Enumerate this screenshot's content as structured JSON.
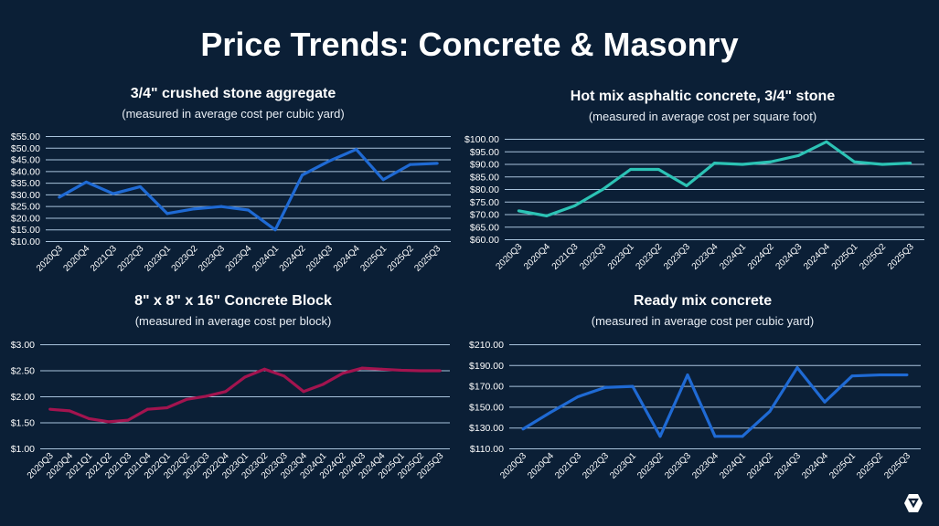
{
  "title": "Price Trends: Concrete & Masonry",
  "logo": {
    "icon": "brand-logo-icon"
  },
  "chart_data": [
    {
      "type": "line",
      "title": "3/4\" crushed stone aggregate",
      "subtitle": "(measured in average cost per cubic yard)",
      "categories": [
        "2020Q3",
        "2020Q4",
        "2021Q3",
        "2022Q3",
        "2023Q1",
        "2023Q2",
        "2023Q3",
        "2023Q4",
        "2024Q1",
        "2024Q2",
        "2024Q3",
        "2024Q4",
        "2025Q1",
        "2025Q2",
        "2025Q3"
      ],
      "values": [
        29.0,
        35.5,
        30.5,
        33.5,
        22.0,
        24.0,
        25.0,
        23.5,
        15.0,
        38.5,
        44.5,
        49.5,
        36.5,
        43.0,
        43.5
      ],
      "ylim": [
        10,
        55
      ],
      "ystep": 5,
      "yformat": "$0.00",
      "yticks": [
        "$10.00",
        "$15.00",
        "$20.00",
        "$25.00",
        "$30.00",
        "$35.00",
        "$40.00",
        "$45.00",
        "$50.00",
        "$55.00"
      ],
      "color": "#1f6ad4",
      "grid": true
    },
    {
      "type": "line",
      "title": "Hot mix asphaltic concrete, 3/4\" stone",
      "subtitle": "(measured in average cost per square foot)",
      "categories": [
        "2020Q3",
        "2020Q4",
        "2021Q3",
        "2022Q3",
        "2023Q1",
        "2023Q2",
        "2023Q3",
        "2023Q4",
        "2024Q1",
        "2024Q2",
        "2024Q3",
        "2024Q4",
        "2025Q1",
        "2025Q2",
        "2025Q3"
      ],
      "values": [
        71.5,
        69.5,
        73.5,
        80.0,
        88.0,
        88.0,
        81.5,
        90.5,
        90.0,
        91.0,
        93.5,
        99.0,
        91.0,
        90.0,
        90.5
      ],
      "ylim": [
        60,
        100
      ],
      "ystep": 5,
      "yticks": [
        "$60.00",
        "$65.00",
        "$70.00",
        "$75.00",
        "$80.00",
        "$85.00",
        "$90.00",
        "$95.00",
        "$100.00"
      ],
      "color": "#2cc3b5",
      "grid": true
    },
    {
      "type": "line",
      "title": "8\" x 8\" x 16\" Concrete Block",
      "subtitle": "(measured in average cost per block)",
      "categories": [
        "2020Q3",
        "2020Q4",
        "2021Q1",
        "2021Q2",
        "2021Q3",
        "2021Q4",
        "2022Q1",
        "2022Q2",
        "2022Q3",
        "2022Q4",
        "2023Q1",
        "2023Q2",
        "2023Q3",
        "2023Q4",
        "2024Q1",
        "2024Q2",
        "2024Q3",
        "2024Q4",
        "2025Q1",
        "2025Q2",
        "2025Q3"
      ],
      "values": [
        1.76,
        1.73,
        1.58,
        1.52,
        1.55,
        1.76,
        1.79,
        1.95,
        2.01,
        2.1,
        2.38,
        2.53,
        2.4,
        2.1,
        2.24,
        2.45,
        2.55,
        2.53,
        2.51,
        2.5,
        2.5
      ],
      "ylim": [
        1,
        3
      ],
      "ystep": 0.5,
      "yticks": [
        "$1.00",
        "$1.50",
        "$2.00",
        "$2.50",
        "$3.00"
      ],
      "color": "#a3144f",
      "grid": true
    },
    {
      "type": "line",
      "title": "Ready mix concrete",
      "subtitle": "(measured in average cost per cubic yard)",
      "categories": [
        "2020Q3",
        "2020Q4",
        "2021Q3",
        "2022Q3",
        "2023Q1",
        "2023Q2",
        "2023Q3",
        "2023Q4",
        "2024Q1",
        "2024Q2",
        "2024Q3",
        "2024Q4",
        "2025Q1",
        "2025Q2",
        "2025Q3"
      ],
      "values": [
        129,
        145,
        160,
        169,
        170,
        122,
        181,
        122,
        122,
        146,
        188,
        155,
        180,
        181,
        181
      ],
      "ylim": [
        110,
        210
      ],
      "ystep": 20,
      "yticks": [
        "$110.00",
        "$130.00",
        "$150.00",
        "$170.00",
        "$190.00",
        "$210.00"
      ],
      "color": "#1f6ad4",
      "grid": true
    }
  ]
}
